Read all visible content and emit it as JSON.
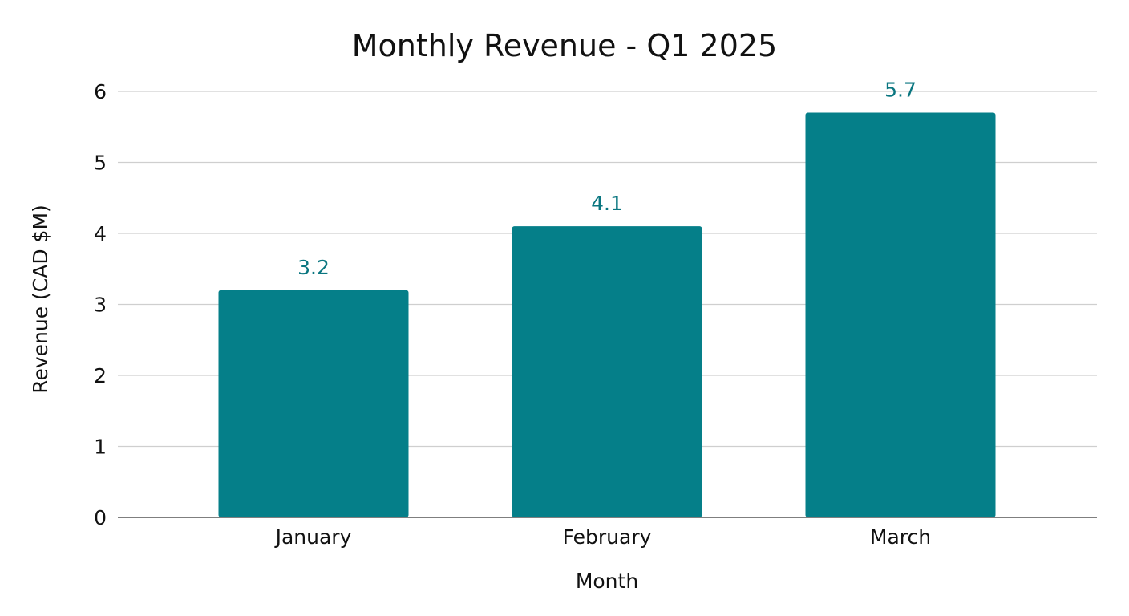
{
  "chart_data": {
    "type": "bar",
    "title": "Monthly Revenue - Q1 2025",
    "xlabel": "Month",
    "ylabel": "Revenue (CAD $M)",
    "categories": [
      "January",
      "February",
      "March"
    ],
    "values": [
      3.2,
      4.1,
      5.7
    ],
    "data_labels": [
      "3.2",
      "4.1",
      "5.7"
    ],
    "ylim": [
      0,
      6
    ],
    "yticks": [
      0,
      1,
      2,
      3,
      4,
      5,
      6
    ],
    "ytick_labels": [
      "0",
      "1",
      "2",
      "3",
      "4",
      "5",
      "6"
    ],
    "grid": true,
    "legend": "none",
    "colors": {
      "bar": "#057f89",
      "data_label": "#0a7680",
      "gridline": "#cfcfcf",
      "baseline": "#555555",
      "text": "#111111"
    }
  }
}
